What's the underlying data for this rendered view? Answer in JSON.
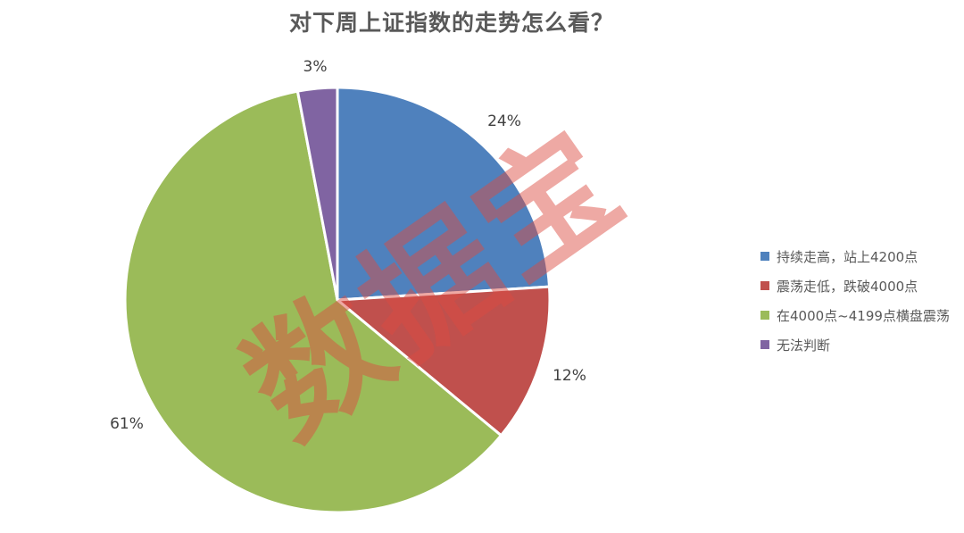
{
  "page": {
    "background": "#ffffff"
  },
  "chart_data": {
    "type": "pie",
    "title": "对下周上证指数的走势怎么看？",
    "title_color": "#595959",
    "label_color": "#404040",
    "legend_position": "right",
    "labels_style": "outside-percent",
    "start_angle": "12-o-clock",
    "direction": "clockwise",
    "slices": [
      {
        "label": "持续走高，站上4200点",
        "value": 24,
        "percent_label": "24%",
        "color": "#4F81BD"
      },
      {
        "label": "震荡走低，跌破4000点",
        "value": 12,
        "percent_label": "12%",
        "color": "#C0504D"
      },
      {
        "label": "在4000点~4199点横盘震荡",
        "value": 61,
        "percent_label": "61%",
        "color": "#9BBB59"
      },
      {
        "label": "无法判断",
        "value": 3,
        "percent_label": "3%",
        "color": "#8064A2"
      }
    ]
  },
  "watermark": {
    "text": "数据宝",
    "color": "#DB4C41"
  }
}
